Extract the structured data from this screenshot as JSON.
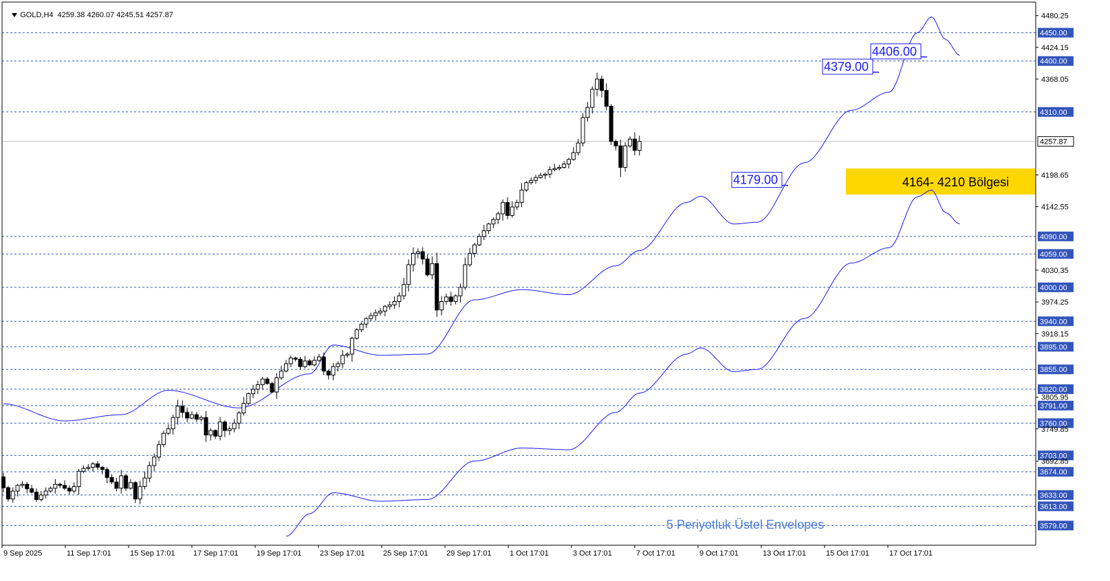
{
  "header": {
    "symbol": "GOLD,H4",
    "ohlc": "4259.38 4260.07 4245.51 4257.87"
  },
  "colors": {
    "background": "#ffffff",
    "envelope": "#1a1aff",
    "candle_bull_fill": "#ffffff",
    "candle_bear_fill": "#000000",
    "level_line": "#3355bb",
    "level_label_bg": "#3355bb",
    "zone": "#ffd700",
    "annotation_text": "#4a7dd6"
  },
  "chart_data": {
    "type": "candlestick",
    "symbol": "GOLD",
    "timeframe": "H4",
    "ylim": [
      3560,
      4492
    ],
    "y_axis_ticks": [
      4480.25,
      4424.15,
      4368.05,
      4198.65,
      4142.55,
      4030.35,
      3974.25,
      3918.15,
      3805.95,
      3749.85,
      3692.85
    ],
    "current_price": "4257.87",
    "x_tick_labels": [
      "9 Sep 2025",
      "11 Sep 17:01",
      "15 Sep 17:01",
      "17 Sep 17:01",
      "19 Sep 17:01",
      "23 Sep 17:01",
      "25 Sep 17:01",
      "29 Sep 17:01",
      "1 Oct 17:01",
      "3 Oct 17:01",
      "7 Oct 17:01",
      "9 Oct 17:01",
      "13 Oct 17:01",
      "15 Oct 17:01",
      "17 Oct 17:01"
    ],
    "horizontal_levels": [
      "4450.00",
      "4400.00",
      "4310.00",
      "4090.00",
      "4059.00",
      "4000.00",
      "3940.00",
      "3895.00",
      "3855.00",
      "3820.00",
      "3791.00",
      "3760.00",
      "3703.00",
      "3674.00",
      "3633.00",
      "3613.00",
      "3579.00"
    ],
    "price_callouts": [
      "4179.00",
      "4379.00",
      "4406.00"
    ],
    "zone": {
      "low": 4164,
      "high": 4210,
      "label": "4164- 4210 Bölgesi"
    },
    "indicator_label": "5 Periyotluk Üstel Envelopes",
    "closes": [
      3646,
      3626,
      3640,
      3650,
      3652,
      3644,
      3638,
      3625,
      3633,
      3640,
      3645,
      3652,
      3650,
      3645,
      3640,
      3648,
      3675,
      3680,
      3682,
      3688,
      3682,
      3678,
      3664,
      3656,
      3645,
      3667,
      3645,
      3655,
      3626,
      3648,
      3663,
      3685,
      3700,
      3722,
      3742,
      3750,
      3770,
      3790,
      3779,
      3769,
      3775,
      3767,
      3770,
      3739,
      3747,
      3737,
      3762,
      3747,
      3750,
      3760,
      3778,
      3795,
      3812,
      3820,
      3828,
      3838,
      3830,
      3815,
      3840,
      3852,
      3865,
      3875,
      3873,
      3860,
      3870,
      3863,
      3871,
      3877,
      3852,
      3845,
      3860,
      3865,
      3880,
      3882,
      3910,
      3925,
      3935,
      3945,
      3950,
      3955,
      3958,
      3966,
      3969,
      3975,
      3985,
      4005,
      4040,
      4060,
      4063,
      4050,
      4022,
      4042,
      3960,
      3975,
      3983,
      3975,
      3985,
      4000,
      4040,
      4060,
      4075,
      4090,
      4100,
      4112,
      4120,
      4130,
      4150,
      4127,
      4142,
      4150,
      4172,
      4185,
      4189,
      4194,
      4198,
      4200,
      4208,
      4210,
      4212,
      4218,
      4226,
      4238,
      4255,
      4300,
      4318,
      4350,
      4368,
      4348,
      4320,
      4258,
      4250,
      4212,
      4250,
      4262,
      4242,
      4258
    ],
    "upper_envelope_anchors": [
      [
        0,
        3794
      ],
      [
        13,
        3764
      ],
      [
        25,
        3775
      ],
      [
        35,
        3818
      ],
      [
        50,
        3787
      ],
      [
        65,
        3847
      ],
      [
        70,
        3898
      ],
      [
        80,
        3880
      ],
      [
        90,
        3882
      ],
      [
        100,
        3978
      ],
      [
        110,
        3996
      ],
      [
        120,
        3987
      ],
      [
        130,
        4038
      ],
      [
        135,
        4065
      ],
      [
        145,
        4150
      ],
      [
        148,
        4161
      ],
      [
        155,
        4112
      ],
      [
        160,
        4115
      ],
      [
        170,
        4220
      ],
      [
        180,
        4313
      ],
      [
        188,
        4345
      ],
      [
        194,
        4450
      ],
      [
        197,
        4478
      ],
      [
        200,
        4438
      ],
      [
        203,
        4410
      ]
    ],
    "lower_envelope_anchors": [
      [
        60,
        3560
      ],
      [
        65,
        3600
      ],
      [
        70,
        3637
      ],
      [
        80,
        3622
      ],
      [
        90,
        3625
      ],
      [
        100,
        3693
      ],
      [
        110,
        3716
      ],
      [
        120,
        3713
      ],
      [
        130,
        3779
      ],
      [
        135,
        3813
      ],
      [
        145,
        3882
      ],
      [
        148,
        3893
      ],
      [
        155,
        3851
      ],
      [
        160,
        3855
      ],
      [
        170,
        3945
      ],
      [
        180,
        4043
      ],
      [
        188,
        4070
      ],
      [
        194,
        4160
      ],
      [
        197,
        4172
      ],
      [
        200,
        4132
      ],
      [
        203,
        4112
      ]
    ]
  }
}
